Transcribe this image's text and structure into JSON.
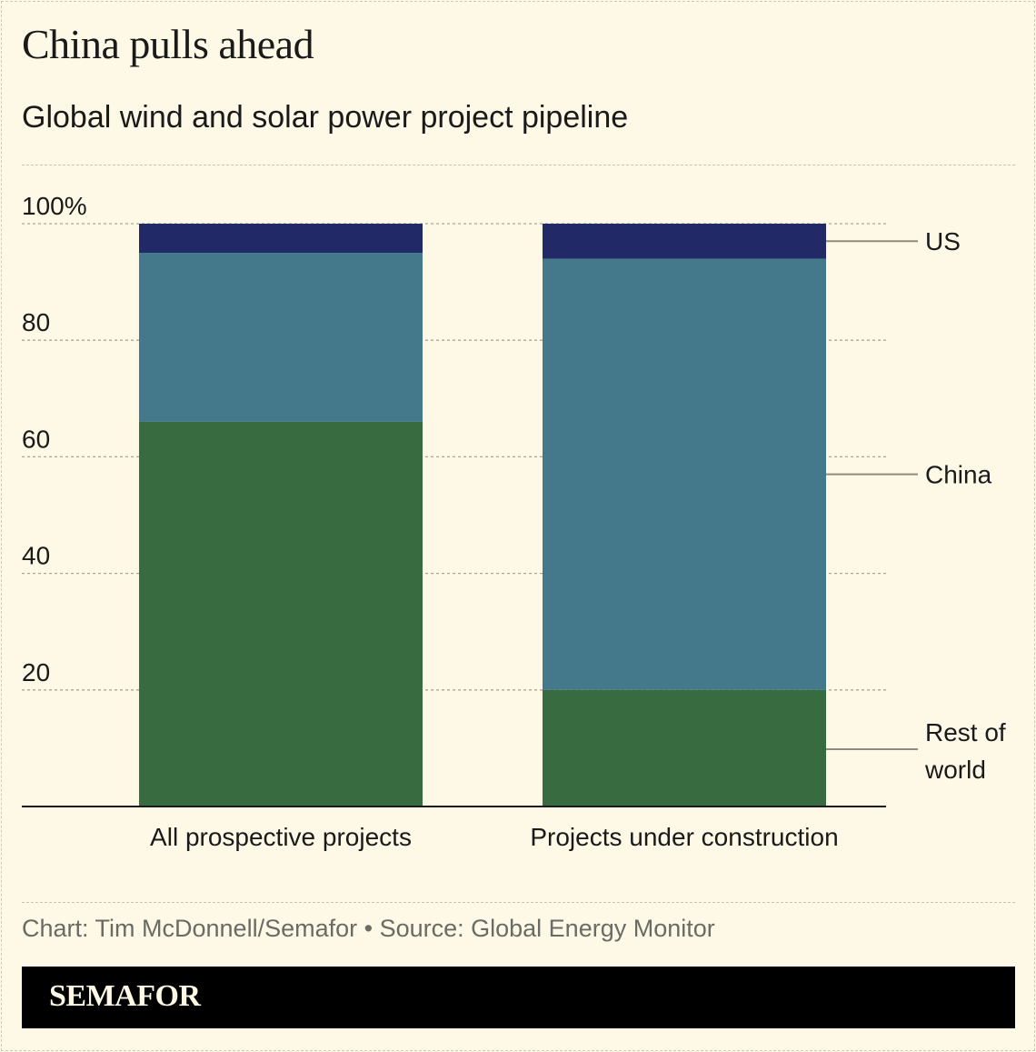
{
  "title": "China pulls ahead",
  "subtitle": "Global wind and solar power project pipeline",
  "source": "Chart: Tim McDonnell/Semafor • Source: Global Energy Monitor",
  "logo": "SEMAFOR",
  "chart_data": {
    "type": "bar",
    "stacked": true,
    "categories": [
      "All prospective projects",
      "Projects under construction"
    ],
    "series": [
      {
        "name": "Rest of world",
        "values": [
          66,
          20
        ],
        "color": "#386b40"
      },
      {
        "name": "China",
        "values": [
          29,
          74
        ],
        "color": "#44798c"
      },
      {
        "name": "US",
        "values": [
          5,
          6
        ],
        "color": "#212a66"
      }
    ],
    "legend_labels": [
      "US",
      "China",
      "Rest of",
      "world"
    ],
    "ylim": [
      0,
      100
    ],
    "yticks": [
      20,
      40,
      60,
      80,
      100
    ],
    "ytick_labels": [
      "20",
      "40",
      "60",
      "80",
      "100%"
    ],
    "grid": true,
    "legend": "right (direct labels)"
  }
}
